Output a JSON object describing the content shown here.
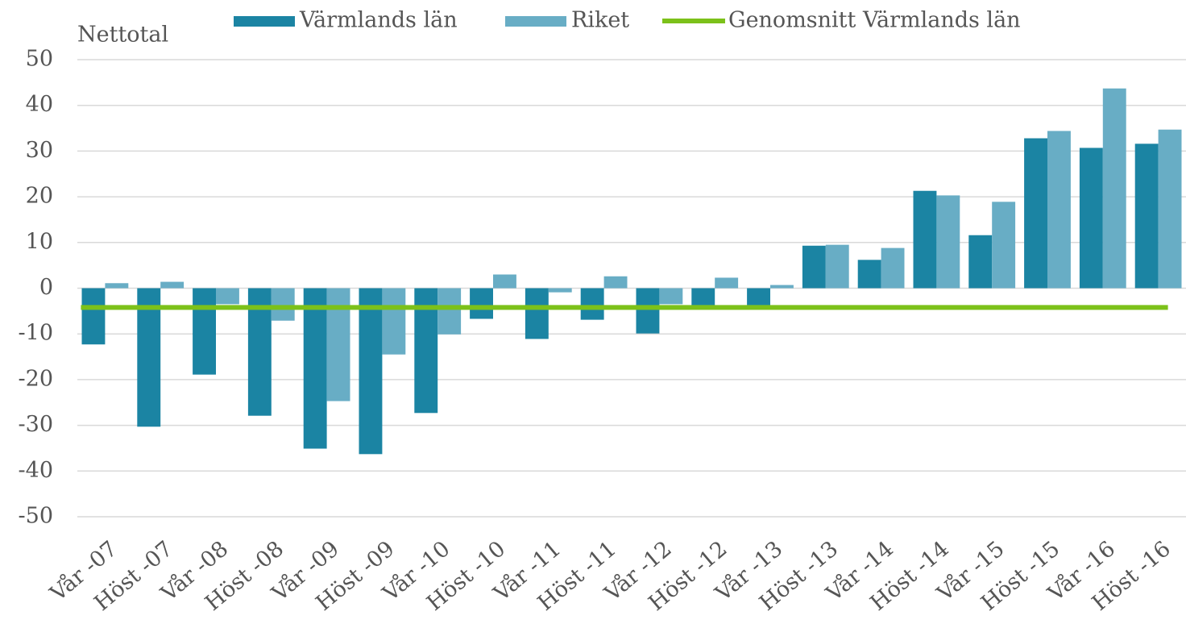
{
  "chart_data": {
    "type": "bar",
    "y_label": "Nettotal",
    "categories": [
      "Vår -07",
      "Höst -07",
      "Vår -08",
      "Höst -08",
      "Vår -09",
      "Höst -09",
      "Vår -10",
      "Höst -10",
      "Vår -11",
      "Höst -11",
      "Vår -12",
      "Höst -12",
      "Vår -13",
      "Höst -13",
      "Vår -14",
      "Höst -14",
      "Vår -15",
      "Höst -15",
      "Vår -16",
      "Höst -16"
    ],
    "series": [
      {
        "name": "Värmlands län",
        "type": "bar",
        "color": "#1b84a3",
        "values": [
          -12.3,
          -30.3,
          -18.9,
          -27.9,
          -35.1,
          -36.3,
          -27.3,
          -6.7,
          -11.1,
          -6.9,
          -9.9,
          -3.7,
          -3.7,
          9.3,
          6.2,
          21.3,
          11.6,
          32.8,
          30.7,
          31.6
        ]
      },
      {
        "name": "Riket",
        "type": "bar",
        "color": "#68adc5",
        "values": [
          1.1,
          1.4,
          -3.5,
          -7.1,
          -24.7,
          -14.5,
          -10.1,
          3.0,
          -0.9,
          2.6,
          -3.5,
          2.3,
          0.7,
          9.5,
          8.8,
          20.3,
          18.9,
          34.4,
          43.7,
          34.7
        ]
      },
      {
        "name": "Genomsnitt Värmlands län",
        "type": "line",
        "color": "#7cc11a",
        "values": [
          -4.2,
          -4.2,
          -4.2,
          -4.2,
          -4.2,
          -4.2,
          -4.2,
          -4.2,
          -4.2,
          -4.2,
          -4.2,
          -4.2,
          -4.2,
          -4.2,
          -4.2,
          -4.2,
          -4.2,
          -4.2,
          -4.2,
          -4.2
        ]
      }
    ],
    "ylim": [
      -50,
      50
    ],
    "yticks": [
      -50,
      -40,
      -30,
      -20,
      -10,
      0,
      10,
      20,
      30,
      40,
      50
    ],
    "grid": true,
    "legend": "top"
  }
}
